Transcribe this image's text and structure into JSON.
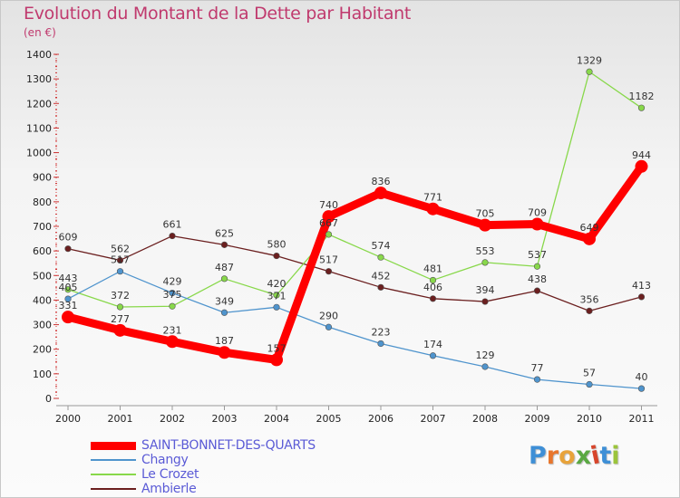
{
  "title": "Evolution du Montant de la Dette par Habitant",
  "subtitle": "(en €)",
  "logo_text": "Proxiti",
  "chart_data": {
    "type": "line",
    "x": [
      "2000",
      "2001",
      "2002",
      "2003",
      "2004",
      "2005",
      "2006",
      "2007",
      "2008",
      "2009",
      "2010",
      "2011"
    ],
    "ylim": [
      0,
      1400
    ],
    "yticks": [
      0,
      100,
      200,
      300,
      400,
      500,
      600,
      700,
      800,
      900,
      1000,
      1100,
      1200,
      1300,
      1400
    ],
    "grid": false,
    "legend_position": "bottom-left",
    "series": [
      {
        "name": "SAINT-BONNET-DES-QUARTS",
        "color": "#ff0000",
        "values": [
          331,
          277,
          231,
          187,
          157,
          740,
          836,
          771,
          705,
          709,
          649,
          944
        ]
      },
      {
        "name": "Changy",
        "color": "#4f94cd",
        "values": [
          405,
          517,
          429,
          349,
          371,
          290,
          223,
          174,
          129,
          77,
          57,
          40
        ]
      },
      {
        "name": "Le Crozet",
        "color": "#88d84a",
        "values": [
          443,
          372,
          375,
          487,
          420,
          667,
          574,
          481,
          553,
          537,
          1329,
          1182
        ]
      },
      {
        "name": "Ambierle",
        "color": "#6b1f1f",
        "values": [
          609,
          562,
          661,
          625,
          580,
          517,
          452,
          406,
          394,
          438,
          356,
          413
        ]
      }
    ]
  }
}
